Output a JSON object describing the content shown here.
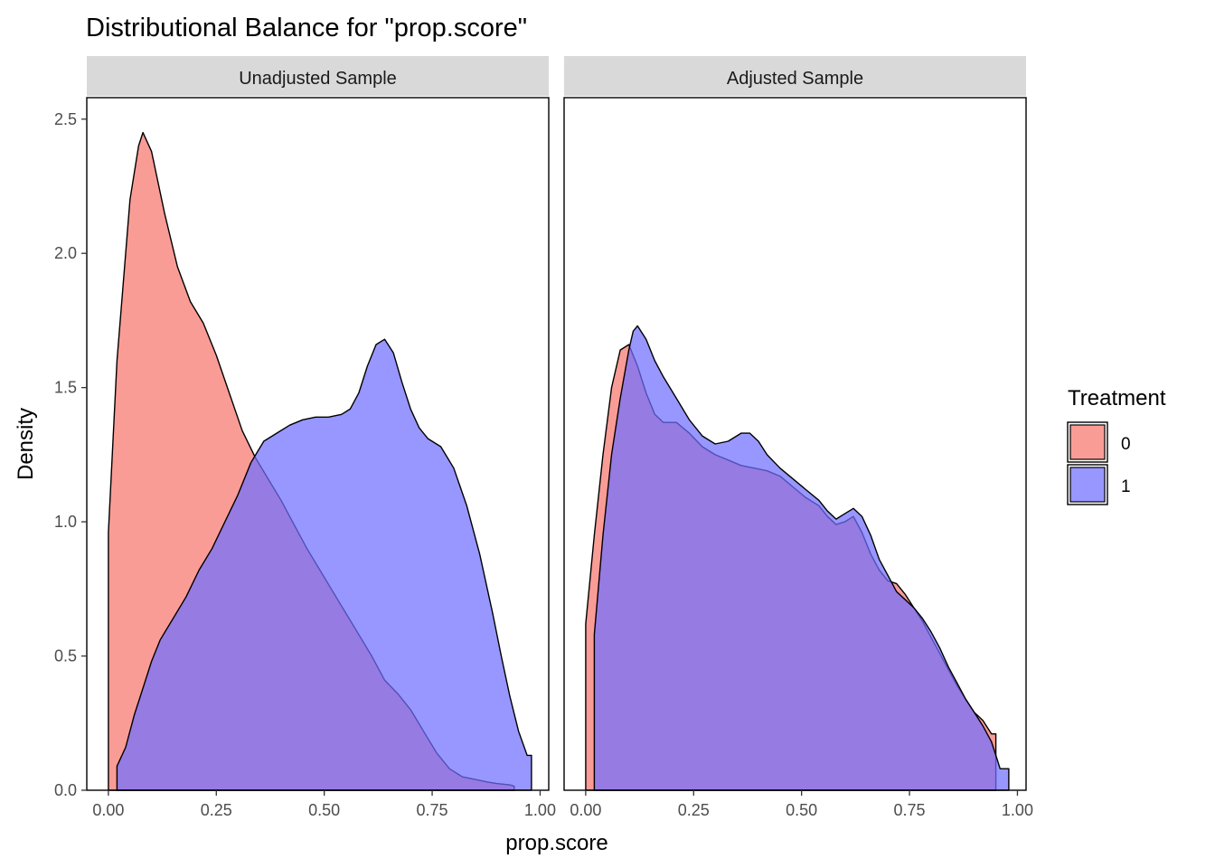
{
  "chart_data": {
    "type": "area",
    "title": "Distributional Balance for \"prop.score\"",
    "xlabel": "prop.score",
    "ylabel": "Density",
    "xlim": [
      -0.05,
      1.02
    ],
    "ylim": [
      0,
      2.58
    ],
    "x_ticks": [
      0,
      0.25,
      0.5,
      0.75,
      1
    ],
    "x_tick_labels": [
      "0.00",
      "0.25",
      "0.50",
      "0.75",
      "1.00"
    ],
    "y_ticks": [
      0,
      0.5,
      1,
      1.5,
      2,
      2.5
    ],
    "y_tick_labels": [
      "0.0",
      "0.5",
      "1.0",
      "1.5",
      "2.0",
      "2.5"
    ],
    "grid": false,
    "legend": {
      "title": "Treatment",
      "position": "right",
      "entries": [
        {
          "label": "0",
          "color": "#F8766D"
        },
        {
          "label": "1",
          "color": "#6F6FFF"
        }
      ]
    },
    "fill_opacity": 0.72,
    "panels": [
      {
        "name": "Unadjusted Sample",
        "series": [
          {
            "name": "0",
            "color": "#F8766D",
            "points": [
              [
                0.0,
                0
              ],
              [
                0.0,
                0.96
              ],
              [
                0.02,
                1.6
              ],
              [
                0.05,
                2.2
              ],
              [
                0.07,
                2.4
              ],
              [
                0.08,
                2.45
              ],
              [
                0.1,
                2.38
              ],
              [
                0.13,
                2.15
              ],
              [
                0.16,
                1.95
              ],
              [
                0.19,
                1.82
              ],
              [
                0.22,
                1.74
              ],
              [
                0.25,
                1.62
              ],
              [
                0.28,
                1.48
              ],
              [
                0.31,
                1.34
              ],
              [
                0.34,
                1.24
              ],
              [
                0.37,
                1.16
              ],
              [
                0.4,
                1.08
              ],
              [
                0.43,
                0.99
              ],
              [
                0.46,
                0.9
              ],
              [
                0.49,
                0.82
              ],
              [
                0.52,
                0.74
              ],
              [
                0.55,
                0.66
              ],
              [
                0.58,
                0.58
              ],
              [
                0.61,
                0.5
              ],
              [
                0.64,
                0.41
              ],
              [
                0.67,
                0.36
              ],
              [
                0.7,
                0.3
              ],
              [
                0.73,
                0.22
              ],
              [
                0.76,
                0.14
              ],
              [
                0.79,
                0.08
              ],
              [
                0.82,
                0.05
              ],
              [
                0.85,
                0.04
              ],
              [
                0.88,
                0.03
              ],
              [
                0.9,
                0.025
              ],
              [
                0.93,
                0.02
              ],
              [
                0.94,
                0.015
              ],
              [
                0.94,
                0
              ]
            ]
          },
          {
            "name": "1",
            "color": "#6F6FFF",
            "points": [
              [
                0.02,
                0
              ],
              [
                0.02,
                0.09
              ],
              [
                0.04,
                0.16
              ],
              [
                0.06,
                0.28
              ],
              [
                0.08,
                0.38
              ],
              [
                0.1,
                0.48
              ],
              [
                0.12,
                0.56
              ],
              [
                0.15,
                0.64
              ],
              [
                0.18,
                0.72
              ],
              [
                0.21,
                0.82
              ],
              [
                0.24,
                0.9
              ],
              [
                0.27,
                1.0
              ],
              [
                0.3,
                1.1
              ],
              [
                0.33,
                1.22
              ],
              [
                0.36,
                1.3
              ],
              [
                0.39,
                1.33
              ],
              [
                0.42,
                1.36
              ],
              [
                0.45,
                1.38
              ],
              [
                0.48,
                1.39
              ],
              [
                0.51,
                1.39
              ],
              [
                0.54,
                1.4
              ],
              [
                0.56,
                1.42
              ],
              [
                0.58,
                1.48
              ],
              [
                0.6,
                1.58
              ],
              [
                0.62,
                1.66
              ],
              [
                0.64,
                1.68
              ],
              [
                0.66,
                1.63
              ],
              [
                0.68,
                1.52
              ],
              [
                0.7,
                1.42
              ],
              [
                0.72,
                1.35
              ],
              [
                0.74,
                1.31
              ],
              [
                0.77,
                1.28
              ],
              [
                0.8,
                1.2
              ],
              [
                0.83,
                1.06
              ],
              [
                0.86,
                0.88
              ],
              [
                0.89,
                0.66
              ],
              [
                0.91,
                0.5
              ],
              [
                0.93,
                0.35
              ],
              [
                0.95,
                0.22
              ],
              [
                0.97,
                0.13
              ],
              [
                0.98,
                0.13
              ],
              [
                0.98,
                0
              ]
            ]
          }
        ]
      },
      {
        "name": "Adjusted Sample",
        "series": [
          {
            "name": "0",
            "color": "#F8766D",
            "points": [
              [
                0.0,
                0
              ],
              [
                0.0,
                0.62
              ],
              [
                0.02,
                0.95
              ],
              [
                0.04,
                1.25
              ],
              [
                0.06,
                1.5
              ],
              [
                0.08,
                1.64
              ],
              [
                0.1,
                1.66
              ],
              [
                0.12,
                1.58
              ],
              [
                0.14,
                1.48
              ],
              [
                0.16,
                1.4
              ],
              [
                0.18,
                1.37
              ],
              [
                0.21,
                1.37
              ],
              [
                0.24,
                1.33
              ],
              [
                0.27,
                1.28
              ],
              [
                0.3,
                1.25
              ],
              [
                0.33,
                1.23
              ],
              [
                0.36,
                1.21
              ],
              [
                0.39,
                1.2
              ],
              [
                0.42,
                1.19
              ],
              [
                0.45,
                1.17
              ],
              [
                0.48,
                1.13
              ],
              [
                0.51,
                1.09
              ],
              [
                0.54,
                1.06
              ],
              [
                0.56,
                1.02
              ],
              [
                0.58,
                0.99
              ],
              [
                0.6,
                1.0
              ],
              [
                0.62,
                1.02
              ],
              [
                0.64,
                0.96
              ],
              [
                0.66,
                0.88
              ],
              [
                0.68,
                0.82
              ],
              [
                0.7,
                0.78
              ],
              [
                0.72,
                0.77
              ],
              [
                0.74,
                0.73
              ],
              [
                0.76,
                0.68
              ],
              [
                0.78,
                0.63
              ],
              [
                0.8,
                0.57
              ],
              [
                0.82,
                0.51
              ],
              [
                0.84,
                0.45
              ],
              [
                0.86,
                0.39
              ],
              [
                0.88,
                0.34
              ],
              [
                0.9,
                0.29
              ],
              [
                0.92,
                0.26
              ],
              [
                0.94,
                0.21
              ],
              [
                0.95,
                0.21
              ],
              [
                0.95,
                0
              ]
            ]
          },
          {
            "name": "1",
            "color": "#6F6FFF",
            "points": [
              [
                0.02,
                0
              ],
              [
                0.02,
                0.58
              ],
              [
                0.04,
                0.95
              ],
              [
                0.06,
                1.25
              ],
              [
                0.08,
                1.46
              ],
              [
                0.1,
                1.64
              ],
              [
                0.11,
                1.71
              ],
              [
                0.12,
                1.73
              ],
              [
                0.14,
                1.68
              ],
              [
                0.16,
                1.6
              ],
              [
                0.18,
                1.54
              ],
              [
                0.21,
                1.46
              ],
              [
                0.24,
                1.38
              ],
              [
                0.27,
                1.32
              ],
              [
                0.3,
                1.29
              ],
              [
                0.33,
                1.3
              ],
              [
                0.36,
                1.33
              ],
              [
                0.38,
                1.33
              ],
              [
                0.4,
                1.3
              ],
              [
                0.42,
                1.25
              ],
              [
                0.45,
                1.2
              ],
              [
                0.48,
                1.16
              ],
              [
                0.51,
                1.12
              ],
              [
                0.54,
                1.08
              ],
              [
                0.56,
                1.04
              ],
              [
                0.58,
                1.01
              ],
              [
                0.6,
                1.03
              ],
              [
                0.62,
                1.05
              ],
              [
                0.64,
                1.02
              ],
              [
                0.66,
                0.95
              ],
              [
                0.68,
                0.86
              ],
              [
                0.7,
                0.8
              ],
              [
                0.72,
                0.74
              ],
              [
                0.74,
                0.71
              ],
              [
                0.76,
                0.68
              ],
              [
                0.78,
                0.64
              ],
              [
                0.8,
                0.59
              ],
              [
                0.82,
                0.53
              ],
              [
                0.84,
                0.46
              ],
              [
                0.86,
                0.4
              ],
              [
                0.88,
                0.34
              ],
              [
                0.9,
                0.29
              ],
              [
                0.92,
                0.24
              ],
              [
                0.94,
                0.18
              ],
              [
                0.95,
                0.13
              ],
              [
                0.96,
                0.08
              ],
              [
                0.97,
                0.08
              ],
              [
                0.98,
                0.08
              ],
              [
                0.98,
                0
              ]
            ]
          }
        ]
      }
    ]
  }
}
